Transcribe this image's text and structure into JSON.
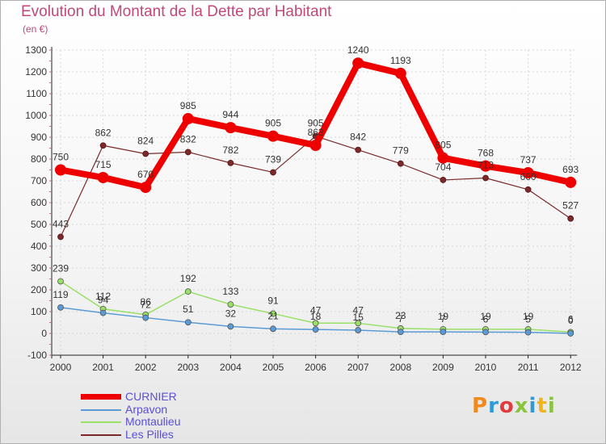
{
  "header": {
    "title": "Evolution du Montant de la Dette par Habitant",
    "unit": "(en €)"
  },
  "brand": {
    "text": "Proxiti",
    "colors": [
      "#f08a1c",
      "#2f9bd6",
      "#e23c3c",
      "#8ac43f",
      "#2f9bd6",
      "#f0b41c",
      "#8ac43f"
    ]
  },
  "chart_data": {
    "type": "line",
    "title": "Evolution du Montant de la Dette par Habitant",
    "ylabel": "(en €)",
    "xlabel": "",
    "categories": [
      "2000",
      "2001",
      "2002",
      "2003",
      "2004",
      "2005",
      "2006",
      "2007",
      "2008",
      "2009",
      "2010",
      "2011",
      "2012"
    ],
    "ylim": [
      -100,
      1300
    ],
    "yticks": [
      -100,
      0,
      100,
      200,
      300,
      400,
      500,
      600,
      700,
      800,
      900,
      1000,
      1100,
      1200,
      1300
    ],
    "grid": true,
    "series": [
      {
        "name": "CURNIER",
        "color": "#ee0000",
        "width": 8,
        "values": [
          750,
          715,
          670,
          985,
          944,
          905,
          863,
          1240,
          1193,
          805,
          768,
          737,
          693
        ],
        "labels": [
          "750",
          "715",
          "670",
          "985",
          "944",
          "905",
          "863",
          "1240",
          "1193",
          "805",
          "768",
          "737",
          "693"
        ]
      },
      {
        "name": "Arpavon",
        "color": "#5b9bd5",
        "width": 1.5,
        "values": [
          119,
          94,
          72,
          51,
          32,
          21,
          18,
          15,
          7,
          7,
          6,
          5,
          0
        ],
        "labels": [
          "119",
          "94",
          "72",
          "51",
          "32",
          "21",
          "18",
          "15",
          "7",
          "7",
          "6",
          "5",
          "0"
        ]
      },
      {
        "name": "Montaulieu",
        "color": "#99e066",
        "width": 1.5,
        "values": [
          239,
          112,
          86,
          192,
          133,
          91,
          47,
          47,
          23,
          19,
          19,
          19,
          6
        ],
        "labels": [
          "239",
          "112",
          "86",
          "192",
          "133",
          "91",
          "47",
          "47",
          "23",
          "19",
          "19",
          "19",
          "6"
        ]
      },
      {
        "name": "Les Pilles",
        "color": "#7a2a2a",
        "width": 1.2,
        "values": [
          443,
          862,
          824,
          832,
          782,
          739,
          905,
          842,
          779,
          704,
          713,
          660,
          527
        ],
        "labels": [
          "443",
          "862",
          "824",
          "832",
          "782",
          "739",
          "905",
          "842",
          "779",
          "704",
          "713",
          "660",
          "527"
        ]
      }
    ],
    "legend_position": "bottom-left"
  }
}
